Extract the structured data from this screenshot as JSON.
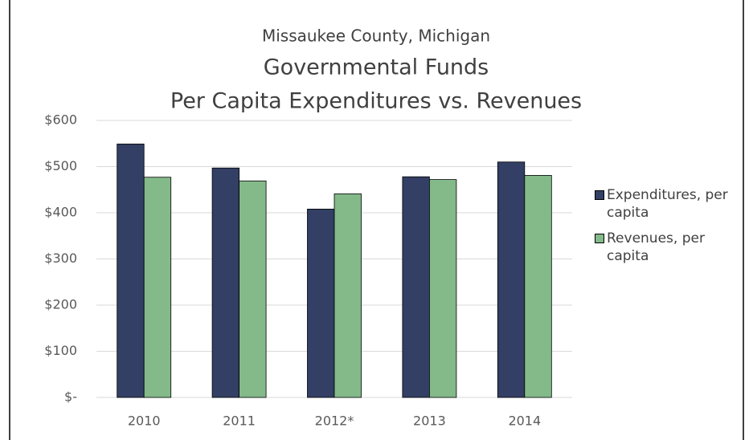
{
  "chart_data": {
    "type": "bar",
    "supertitle": "Missaukee County, Michigan",
    "title": "Governmental Funds",
    "subtitle": "Per Capita Expenditures vs. Revenues",
    "categories": [
      "2010",
      "2011",
      "2012*",
      "2013",
      "2014"
    ],
    "series": [
      {
        "name": "Expenditures, per capita",
        "color": "#333f64",
        "values": [
          549,
          497,
          408,
          478,
          510
        ]
      },
      {
        "name": "Revenues, per capita",
        "color": "#84b98a",
        "values": [
          477,
          469,
          441,
          472,
          481
        ]
      }
    ],
    "ylim": [
      0,
      600
    ],
    "yticks": [
      {
        "value": 0,
        "label": "$-"
      },
      {
        "value": 100,
        "label": "$100"
      },
      {
        "value": 200,
        "label": "$200"
      },
      {
        "value": 300,
        "label": "$300"
      },
      {
        "value": 400,
        "label": "$400"
      },
      {
        "value": 500,
        "label": "$500"
      },
      {
        "value": 600,
        "label": "$600"
      }
    ],
    "grid": true,
    "legend": "right"
  }
}
